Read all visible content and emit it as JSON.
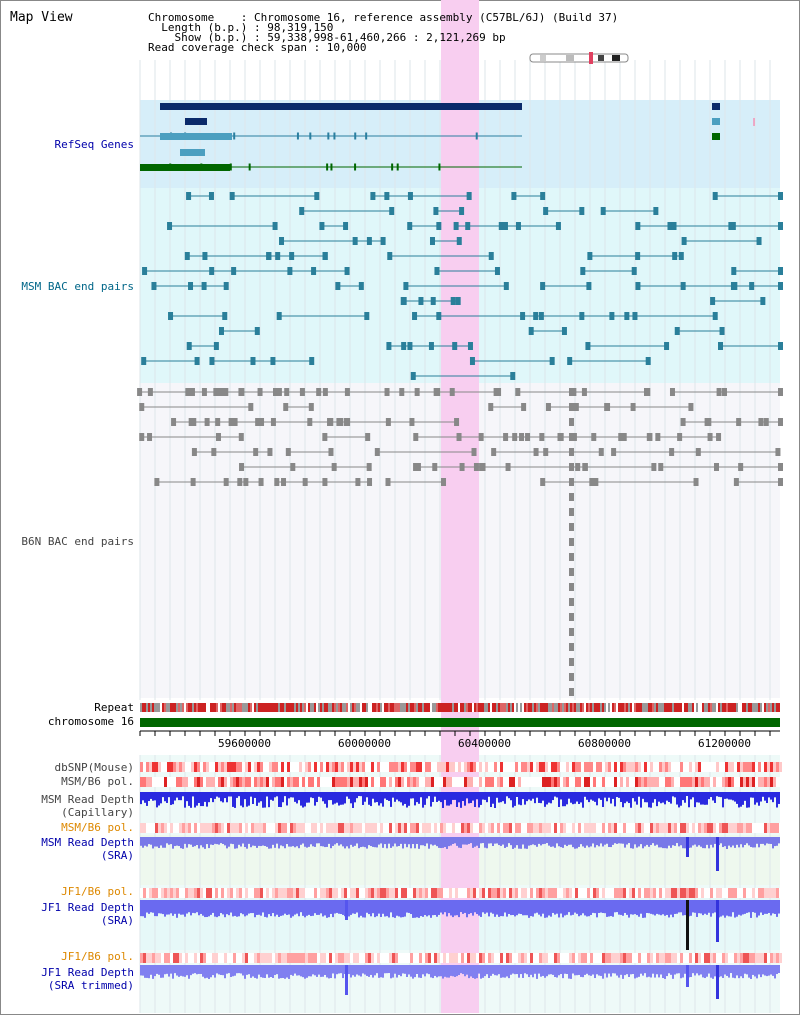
{
  "header": {
    "title": "Map View",
    "chromosome_label": "Chromosome    : Chromosome 16, reference assembly (C57BL/6J) (Build 37)",
    "length_label": "  Length (b.p.) : 98,319,150",
    "show_label": "    Show (b.p.) : 59,338,998-61,460,266 : 2,121,269 bp",
    "coverage_label": "Read coverage check span : 10,000"
  },
  "tracks": {
    "refseq": "RefSeq Genes",
    "msm_bac": "MSM BAC end pairs",
    "b6n_bac": "B6N BAC end pairs",
    "repeat": "Repeat",
    "chromosome": "chromosome 16",
    "dbsnp": "dbSNP(Mouse)",
    "msm_b6_pol": "MSM/B6 pol.",
    "msm_read_depth_cap_1": "MSM Read Depth",
    "msm_read_depth_cap_2": "(Capillary)",
    "msm_b6_pol_2": "MSM/B6 pol.",
    "msm_read_depth_sra_1": "MSM Read Depth",
    "msm_read_depth_sra_2": "(SRA)",
    "jf1_b6_pol": "JF1/B6 pol.",
    "jf1_read_depth_sra_1": "JF1 Read Depth",
    "jf1_read_depth_sra_2": "(SRA)",
    "jf1_b6_pol_2": "JF1/B6 pol.",
    "jf1_read_depth_trim_1": "JF1 Read Depth",
    "jf1_read_depth_trim_2": "(SRA trimmed)"
  },
  "axis": {
    "ticks": [
      "59600000",
      "60000000",
      "60400000",
      "60800000",
      "61200000"
    ]
  },
  "colors": {
    "refseq_bg": "#d6eef9",
    "bac_bg": "#e0f7fa",
    "highlight": "#f8d6f0",
    "gene_navy": "#0a2a6a",
    "gene_green": "#006600",
    "chromosome_green": "#006600"
  }
}
